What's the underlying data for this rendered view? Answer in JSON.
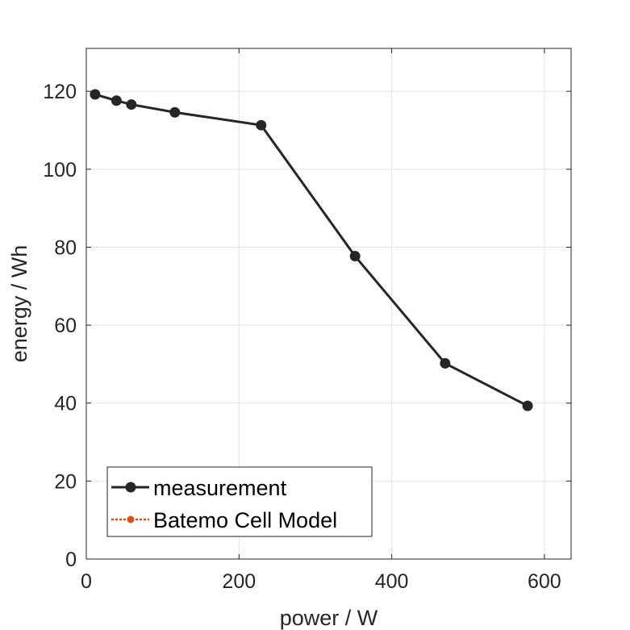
{
  "chart_data": {
    "type": "line",
    "xlabel": "power / W",
    "ylabel": "energy / Wh",
    "xlim": [
      0,
      635
    ],
    "ylim": [
      0,
      131
    ],
    "xticks": [
      0,
      200,
      400,
      600
    ],
    "yticks": [
      0,
      20,
      40,
      60,
      80,
      100,
      120
    ],
    "grid": true,
    "legend_position": "bottom-left",
    "series": [
      {
        "name": "measurement",
        "color": "#262626",
        "marker": "circle",
        "line_style": "solid",
        "x": [
          11.5,
          39.5,
          59,
          116,
          229,
          352,
          470,
          578
        ],
        "y": [
          119.2,
          117.6,
          116.6,
          114.6,
          111.3,
          77.7,
          50.2,
          39.3
        ]
      },
      {
        "name": "Batemo Cell Model",
        "color": "#D95319",
        "marker": "circle",
        "line_style": "dotted",
        "x": [],
        "y": []
      }
    ]
  }
}
